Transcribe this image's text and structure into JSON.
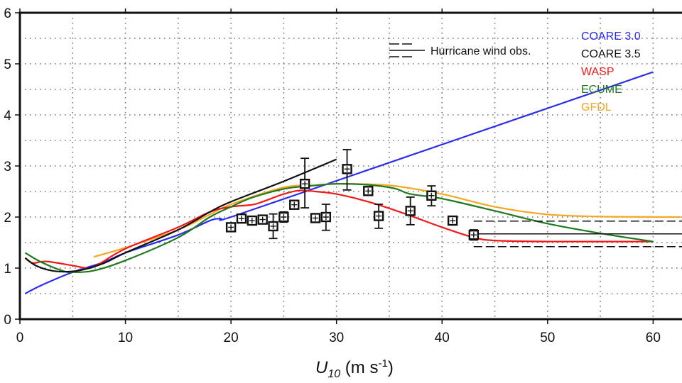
{
  "chart_data": {
    "type": "line",
    "title": "",
    "xlabel": {
      "main": "U",
      "sub": "10",
      "unit_pre": " (m s",
      "sup": "-1",
      "unit_post": ")"
    },
    "ylabel": "",
    "xlim": [
      0,
      62.6
    ],
    "ylim": [
      0,
      6
    ],
    "xticks": [
      0,
      10,
      20,
      30,
      40,
      50,
      60
    ],
    "yticks": [
      0,
      1,
      2,
      3,
      4,
      5,
      6
    ],
    "grid": {
      "x_step": 5,
      "y_step": 0.5,
      "style": "dotted"
    },
    "legend_position": "top-right",
    "series": [
      {
        "name": "COARE 3.0",
        "color": "#2b2bf0",
        "points": [
          [
            0.5,
            0.5
          ],
          [
            2,
            0.66
          ],
          [
            5,
            0.92
          ],
          [
            8,
            1.12
          ],
          [
            10,
            1.3
          ],
          [
            15,
            1.65
          ],
          [
            18,
            1.93
          ],
          [
            19,
            1.97
          ],
          [
            20,
            2.0
          ],
          [
            30,
            2.71
          ],
          [
            40,
            3.42
          ],
          [
            50,
            4.13
          ],
          [
            60,
            4.84
          ]
        ]
      },
      {
        "name": "COARE 3.5",
        "color": "#111111",
        "points": [
          [
            0.5,
            1.2
          ],
          [
            1.5,
            1.05
          ],
          [
            3,
            0.95
          ],
          [
            4.5,
            0.93
          ],
          [
            6,
            0.97
          ],
          [
            8,
            1.1
          ],
          [
            10,
            1.3
          ],
          [
            15,
            1.75
          ],
          [
            18,
            2.1
          ],
          [
            20,
            2.3
          ],
          [
            25,
            2.7
          ],
          [
            30,
            3.13
          ]
        ]
      },
      {
        "name": "WASP",
        "color": "#f01818",
        "points": [
          [
            0.5,
            1.2
          ],
          [
            1.2,
            1.1
          ],
          [
            2.5,
            1.13
          ],
          [
            5,
            1.05
          ],
          [
            6.5,
            1.0
          ],
          [
            7.5,
            1.08
          ],
          [
            10,
            1.38
          ],
          [
            15,
            1.8
          ],
          [
            18,
            2.1
          ],
          [
            20,
            2.2
          ],
          [
            22,
            2.24
          ],
          [
            23,
            2.3
          ],
          [
            25,
            2.45
          ],
          [
            26.5,
            2.52
          ],
          [
            28,
            2.5
          ],
          [
            30,
            2.45
          ],
          [
            33,
            2.3
          ],
          [
            36,
            2.1
          ],
          [
            40,
            1.8
          ],
          [
            43,
            1.6
          ],
          [
            45,
            1.54
          ],
          [
            50,
            1.52
          ],
          [
            60,
            1.52
          ]
        ]
      },
      {
        "name": "ECUME",
        "color": "#1e7a1e",
        "points": [
          [
            0.5,
            1.3
          ],
          [
            2,
            1.12
          ],
          [
            4,
            0.95
          ],
          [
            5,
            0.92
          ],
          [
            7,
            0.95
          ],
          [
            10,
            1.15
          ],
          [
            15,
            1.6
          ],
          [
            18,
            2.0
          ],
          [
            20,
            2.2
          ],
          [
            22,
            2.38
          ],
          [
            25,
            2.55
          ],
          [
            27,
            2.6
          ],
          [
            30,
            2.65
          ],
          [
            33,
            2.63
          ],
          [
            35.5,
            2.56
          ],
          [
            37,
            2.45
          ],
          [
            40,
            2.36
          ],
          [
            45,
            2.12
          ],
          [
            50,
            1.87
          ],
          [
            55,
            1.68
          ],
          [
            60,
            1.52
          ]
        ]
      },
      {
        "name": "GFDL",
        "color": "#f5a623",
        "points": [
          [
            7,
            1.22
          ],
          [
            10,
            1.4
          ],
          [
            15,
            1.75
          ],
          [
            18,
            2.05
          ],
          [
            20,
            2.25
          ],
          [
            25,
            2.58
          ],
          [
            28,
            2.62
          ],
          [
            30,
            2.65
          ],
          [
            35,
            2.62
          ],
          [
            40,
            2.45
          ],
          [
            45,
            2.2
          ],
          [
            50,
            2.05
          ],
          [
            55,
            2.01
          ],
          [
            62.6,
            2.0
          ]
        ]
      }
    ],
    "observations": {
      "name": "Hurricane wind obs.",
      "points": [
        {
          "x": 20,
          "y": 1.8
        },
        {
          "x": 21,
          "y": 1.97
        },
        {
          "x": 22,
          "y": 1.93
        },
        {
          "x": 23,
          "y": 1.95
        },
        {
          "x": 24,
          "y": 1.82,
          "ylo": 1.58,
          "yhi": 2.06
        },
        {
          "x": 25,
          "y": 2.0,
          "ylo": 1.9,
          "yhi": 2.1
        },
        {
          "x": 26,
          "y": 2.24
        },
        {
          "x": 27,
          "y": 2.65,
          "ylo": 2.18,
          "yhi": 3.15
        },
        {
          "x": 28,
          "y": 1.98
        },
        {
          "x": 29,
          "y": 2.0,
          "ylo": 1.74,
          "yhi": 2.25
        },
        {
          "x": 31,
          "y": 2.94,
          "ylo": 2.53,
          "yhi": 3.32
        },
        {
          "x": 33,
          "y": 2.51
        },
        {
          "x": 34,
          "y": 2.02,
          "ylo": 1.78,
          "yhi": 2.25
        },
        {
          "x": 37,
          "y": 2.12,
          "ylo": 1.85,
          "yhi": 2.39
        },
        {
          "x": 39,
          "y": 2.42,
          "ylo": 2.22,
          "yhi": 2.61
        },
        {
          "x": 41,
          "y": 1.93
        },
        {
          "x": 43,
          "y": 1.65,
          "ylo": 1.55,
          "yhi": 1.75
        }
      ],
      "high_wind_range": {
        "x_start": 43,
        "x_end": 62.6,
        "mean": 1.67,
        "upper": 1.92,
        "lower": 1.42
      }
    }
  }
}
